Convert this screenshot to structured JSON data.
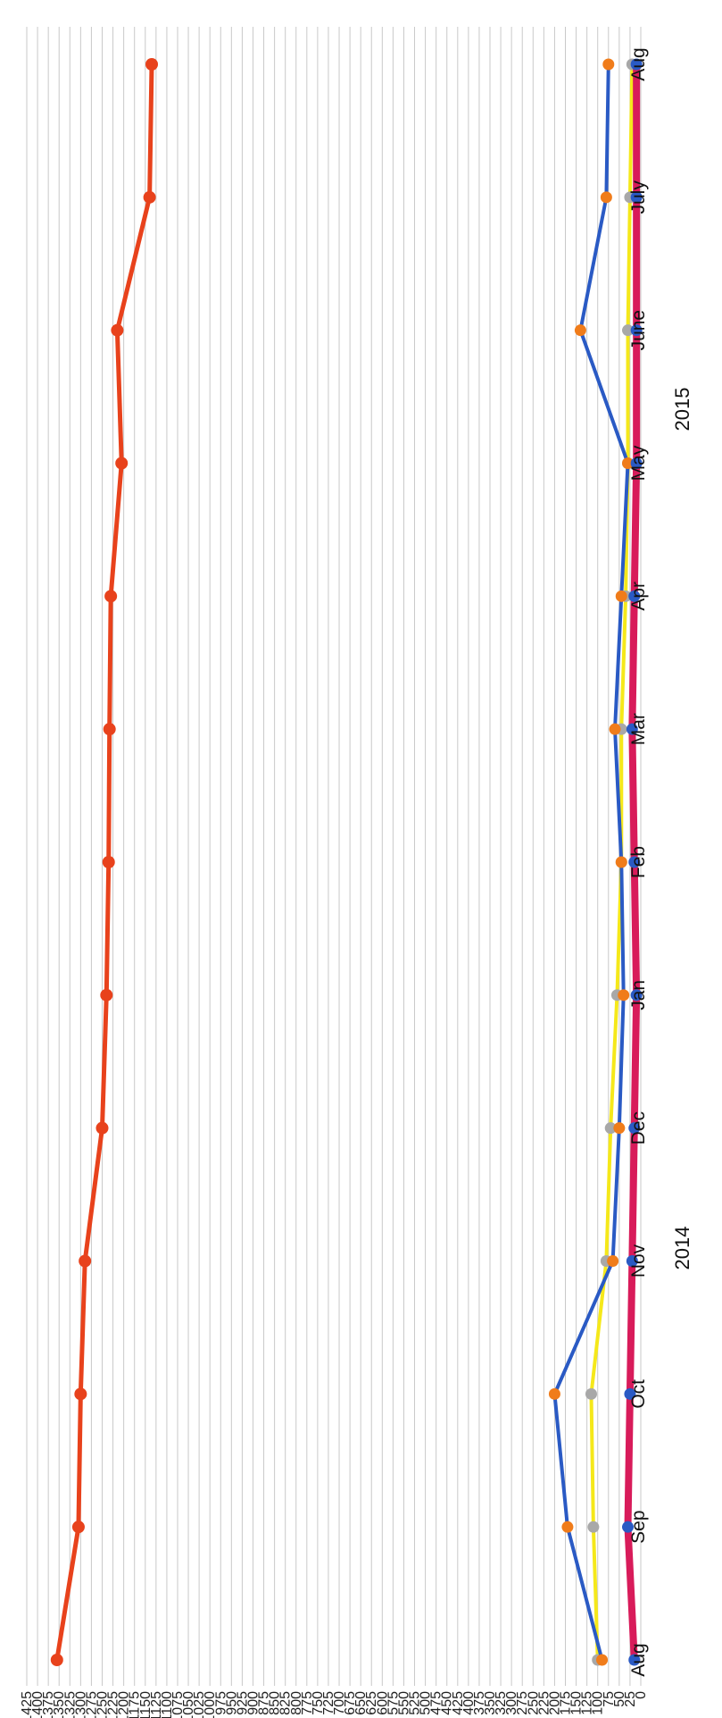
{
  "chart_data": {
    "type": "line",
    "x": [
      "Aug",
      "Sep",
      "Oct",
      "Nov",
      "Dec",
      "Jan",
      "Feb",
      "Mar",
      "Apr",
      "May",
      "June",
      "July",
      "Aug"
    ],
    "year_labels": [
      "2014",
      "2015"
    ],
    "ylim": [
      0,
      1425
    ],
    "y_ticks": [
      0,
      25,
      50,
      75,
      100,
      125,
      150,
      175,
      200,
      225,
      250,
      275,
      300,
      325,
      350,
      375,
      400,
      425,
      450,
      475,
      500,
      525,
      550,
      575,
      600,
      625,
      650,
      675,
      700,
      725,
      750,
      775,
      800,
      825,
      850,
      875,
      900,
      925,
      950,
      975,
      1000,
      1025,
      1050,
      1075,
      1100,
      1125,
      1150,
      1175,
      1200,
      1225,
      1250,
      1275,
      1300,
      1325,
      1350,
      1375,
      1400,
      1425
    ],
    "grid": true,
    "series": [
      {
        "color": "#e8421c",
        "marker_color": "#e8421c",
        "width": 5,
        "values": [
          1355,
          1305,
          1300,
          1290,
          1250,
          1240,
          1235,
          1233,
          1230,
          1205,
          1215,
          1140,
          1135
        ]
      },
      {
        "color": "#2a5ac4",
        "marker_color": "#f07c1a",
        "width": 4,
        "values": [
          90,
          170,
          200,
          65,
          50,
          40,
          45,
          60,
          45,
          30,
          140,
          80,
          75
        ]
      },
      {
        "color": "#f5e81a",
        "marker_color": "#a8a8a8",
        "width": 4,
        "values": [
          100,
          110,
          115,
          80,
          70,
          55,
          45,
          45,
          35,
          30,
          30,
          25,
          20
        ]
      },
      {
        "color": "#d81b5a",
        "marker_color": "#2a5ac4",
        "width": 8,
        "values": [
          15,
          30,
          25,
          20,
          15,
          10,
          15,
          20,
          15,
          10,
          10,
          10,
          10
        ]
      }
    ]
  }
}
